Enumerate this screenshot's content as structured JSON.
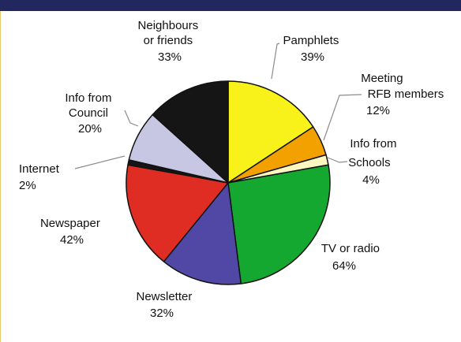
{
  "header": {
    "bar_color": "#22285e"
  },
  "chart_data": {
    "type": "pie",
    "title": "",
    "unit": "%",
    "legend": "none",
    "slices": [
      {
        "label": "Pamphlets",
        "value": 39,
        "value_label": "39%",
        "color": "#f9f21a"
      },
      {
        "label": "Meeting RFB members",
        "value": 12,
        "value_label": "12%",
        "color": "#f2a100"
      },
      {
        "label": "Info from Schools",
        "value": 4,
        "value_label": "4%",
        "color": "#fcf7c0"
      },
      {
        "label": "TV or radio",
        "value": 64,
        "value_label": "64%",
        "color": "#14a830"
      },
      {
        "label": "Newsletter",
        "value": 32,
        "value_label": "32%",
        "color": "#5048a4"
      },
      {
        "label": "Newspaper",
        "value": 42,
        "value_label": "42%",
        "color": "#e02d24"
      },
      {
        "label": "Internet",
        "value": 2,
        "value_label": "2%",
        "color": "#151515"
      },
      {
        "label": "Info from Council",
        "value": 20,
        "value_label": "20%",
        "color": "#c8c7e3"
      },
      {
        "label": "Neighbours or friends",
        "value": 33,
        "value_label": "33%",
        "color": "#151515"
      }
    ]
  }
}
